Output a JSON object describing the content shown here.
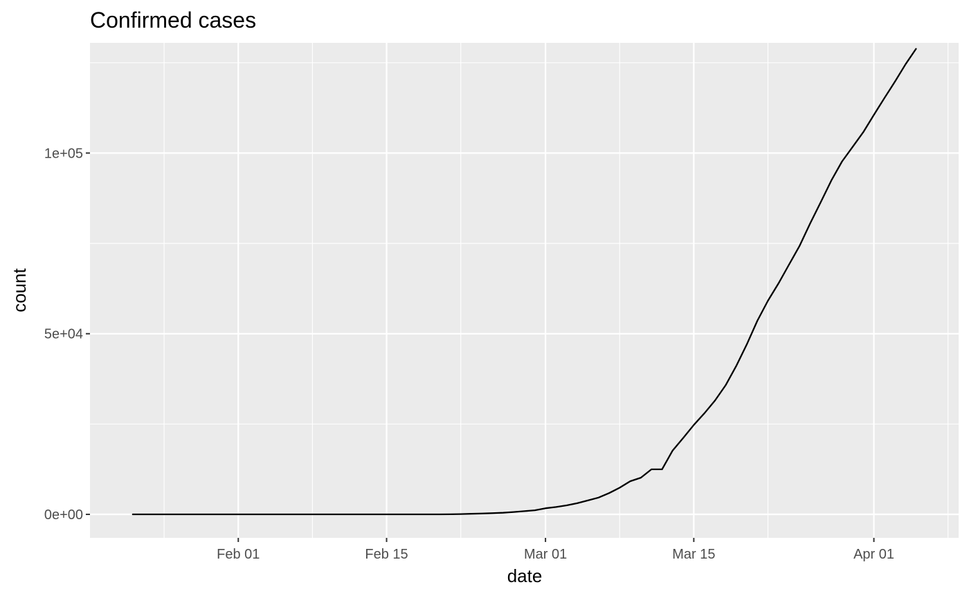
{
  "chart_data": {
    "type": "line",
    "title": "Confirmed cases",
    "xlabel": "date",
    "ylabel": "count",
    "x_range": [
      "2020-01-18",
      "2020-04-09"
    ],
    "ylim": [
      -6500,
      130500
    ],
    "x_ticks": [
      {
        "date": "2020-02-01",
        "label": "Feb 01"
      },
      {
        "date": "2020-02-15",
        "label": "Feb 15"
      },
      {
        "date": "2020-03-01",
        "label": "Mar 01"
      },
      {
        "date": "2020-03-15",
        "label": "Mar 15"
      },
      {
        "date": "2020-04-01",
        "label": "Apr 01"
      }
    ],
    "x_minor_ticks": [
      "2020-01-25",
      "2020-02-08",
      "2020-02-22",
      "2020-03-08",
      "2020-03-22",
      "2020-04-08"
    ],
    "y_ticks": [
      {
        "value": 0,
        "label": "0e+00"
      },
      {
        "value": 50000,
        "label": "5e+04"
      },
      {
        "value": 100000,
        "label": "1e+05"
      }
    ],
    "y_minor_ticks": [
      25000,
      75000,
      125000
    ],
    "grid": true,
    "background": "#ebebeb",
    "line_color": "#000000",
    "series": [
      {
        "x": [
          "2020-01-22",
          "2020-01-23",
          "2020-01-24",
          "2020-01-25",
          "2020-01-26",
          "2020-01-27",
          "2020-01-28",
          "2020-01-29",
          "2020-01-30",
          "2020-01-31",
          "2020-02-01",
          "2020-02-02",
          "2020-02-03",
          "2020-02-04",
          "2020-02-05",
          "2020-02-06",
          "2020-02-07",
          "2020-02-08",
          "2020-02-09",
          "2020-02-10",
          "2020-02-11",
          "2020-02-12",
          "2020-02-13",
          "2020-02-14",
          "2020-02-15",
          "2020-02-16",
          "2020-02-17",
          "2020-02-18",
          "2020-02-19",
          "2020-02-20",
          "2020-02-21",
          "2020-02-22",
          "2020-02-23",
          "2020-02-24",
          "2020-02-25",
          "2020-02-26",
          "2020-02-27",
          "2020-02-28",
          "2020-02-29",
          "2020-03-01",
          "2020-03-02",
          "2020-03-03",
          "2020-03-04",
          "2020-03-05",
          "2020-03-06",
          "2020-03-07",
          "2020-03-08",
          "2020-03-09",
          "2020-03-10",
          "2020-03-11",
          "2020-03-12",
          "2020-03-13",
          "2020-03-14",
          "2020-03-15",
          "2020-03-16",
          "2020-03-17",
          "2020-03-18",
          "2020-03-19",
          "2020-03-20",
          "2020-03-21",
          "2020-03-22",
          "2020-03-23",
          "2020-03-24",
          "2020-03-25",
          "2020-03-26",
          "2020-03-27",
          "2020-03-28",
          "2020-03-29",
          "2020-03-30",
          "2020-03-31",
          "2020-04-01",
          "2020-04-02",
          "2020-04-03",
          "2020-04-04",
          "2020-04-05"
        ],
        "y": [
          0,
          0,
          0,
          0,
          0,
          0,
          0,
          0,
          0,
          0,
          0,
          0,
          0,
          0,
          0,
          0,
          0,
          0,
          0,
          0,
          0,
          0,
          0,
          0,
          0,
          0,
          0,
          0,
          0,
          3,
          20,
          79,
          157,
          229,
          322,
          453,
          655,
          888,
          1128,
          1694,
          2036,
          2502,
          3089,
          3858,
          4636,
          5883,
          7375,
          9172,
          10149,
          12462,
          12462,
          17660,
          21157,
          24747,
          27980,
          31506,
          35713,
          41035,
          47021,
          53578,
          59138,
          63927,
          69176,
          74386,
          80589,
          86498,
          92472,
          97689,
          101739,
          105792,
          110574,
          115242,
          119827,
          124632,
          128948
        ]
      }
    ]
  }
}
